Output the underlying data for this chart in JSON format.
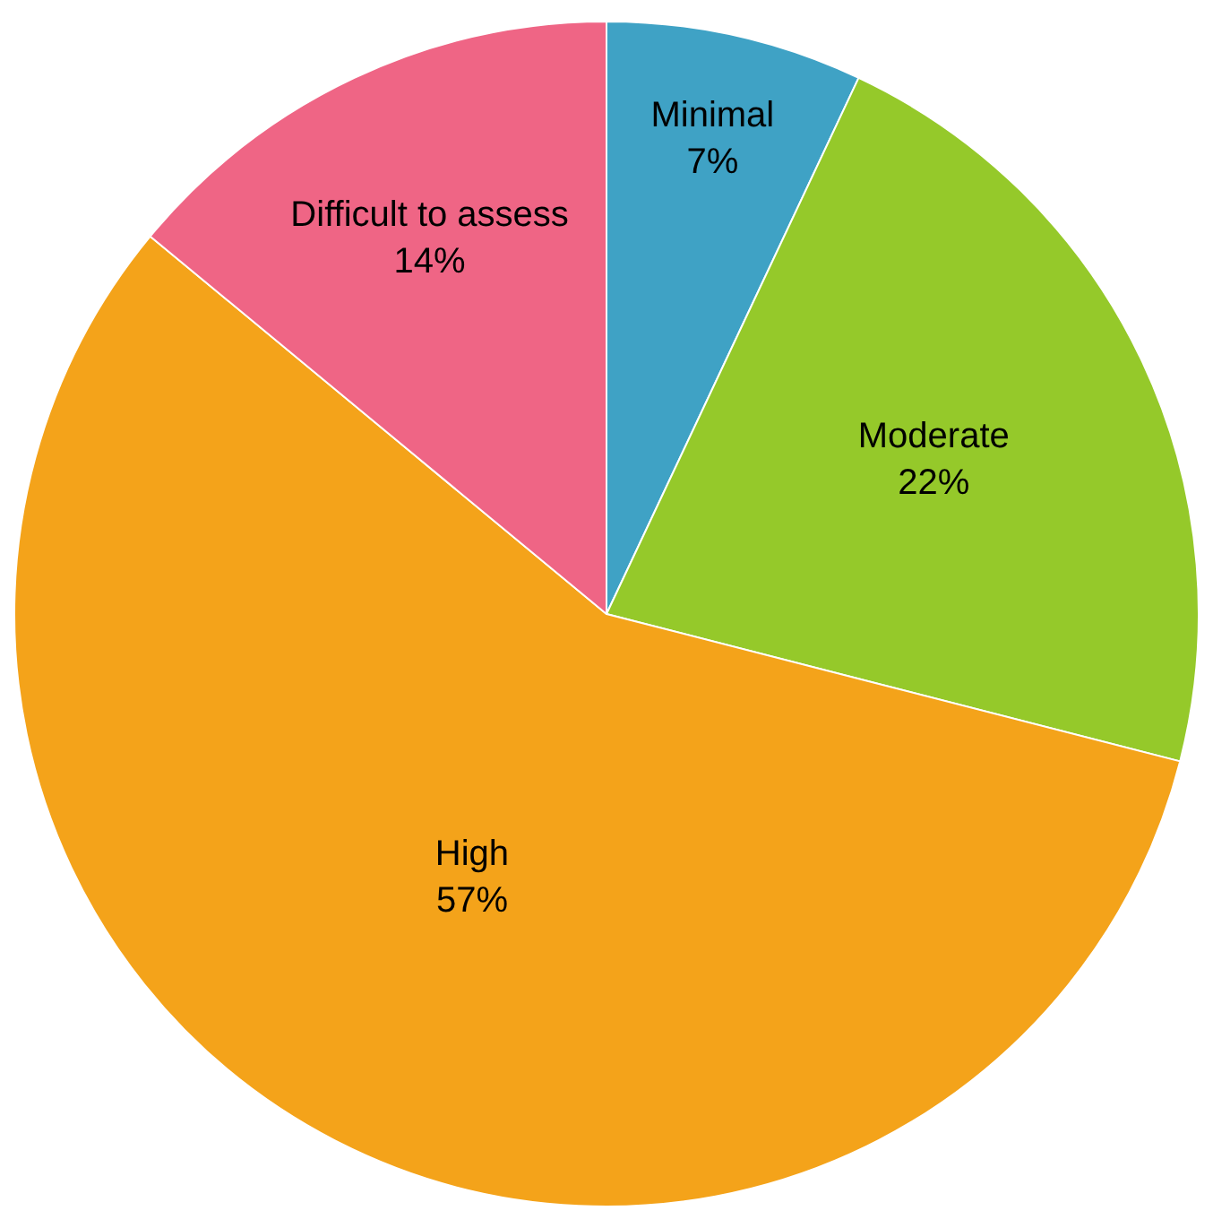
{
  "chart_data": {
    "type": "pie",
    "categories": [
      "Minimal",
      "Moderate",
      "High",
      "Difficult to assess"
    ],
    "values": [
      7,
      22,
      57,
      14
    ],
    "colors": [
      "#3fa2c5",
      "#95c92a",
      "#f4a31a",
      "#ef6585"
    ],
    "value_labels": [
      "7%",
      "22%",
      "57%",
      "14%"
    ],
    "legend": false
  }
}
